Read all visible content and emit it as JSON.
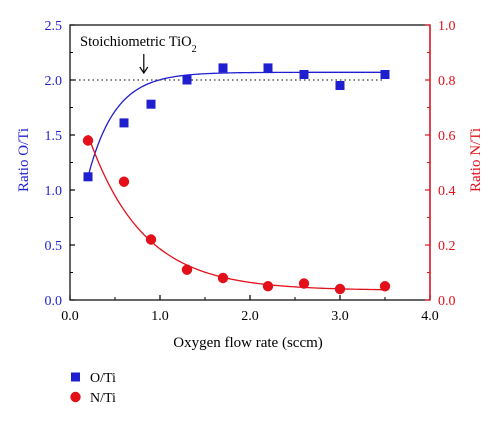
{
  "chart_data": {
    "type": "scatter",
    "xlabel": "Oxygen flow rate (sccm)",
    "ylabel_left": "Ratio O/Ti",
    "ylabel_right": "Ratio N/Ti",
    "xlim": [
      0.0,
      4.0
    ],
    "ylim_left": [
      0.0,
      2.5
    ],
    "ylim_right": [
      0.0,
      1.0
    ],
    "x_ticks": [
      "0.0",
      "1.0",
      "2.0",
      "3.0",
      "4.0"
    ],
    "y_left_ticks": [
      "0.0",
      "0.5",
      "1.0",
      "1.5",
      "2.0",
      "2.5"
    ],
    "y_right_ticks": [
      "0.0",
      "0.2",
      "0.4",
      "0.6",
      "0.8",
      "1.0"
    ],
    "annotation": {
      "text_main": "Stoichiometric TiO",
      "text_sub": "2",
      "reference_y": 2.0,
      "arrow_x": 0.82
    },
    "legend_position": "bottom-left",
    "series": [
      {
        "name": "O/Ti",
        "axis": "left",
        "marker": "square",
        "color": "#1f1fd0",
        "x": [
          0.2,
          0.6,
          0.9,
          1.3,
          1.7,
          2.2,
          2.6,
          3.0,
          3.5
        ],
        "y": [
          1.12,
          1.61,
          1.78,
          2.0,
          2.11,
          2.11,
          2.05,
          1.95,
          2.05
        ],
        "fit": {
          "model": "exp-saturation",
          "y0": 1.12,
          "yinf": 2.07,
          "k": 3.3,
          "x0": 0.2
        }
      },
      {
        "name": "N/Ti",
        "axis": "right",
        "marker": "circle",
        "color": "#e3101a",
        "x": [
          0.2,
          0.6,
          0.9,
          1.3,
          1.7,
          2.2,
          2.6,
          3.0,
          3.5
        ],
        "y": [
          0.58,
          0.43,
          0.22,
          0.11,
          0.08,
          0.05,
          0.06,
          0.04,
          0.05
        ],
        "fit": {
          "model": "exp-decay",
          "y0": 0.6,
          "yinf": 0.035,
          "k": 1.65,
          "x0": 0.2
        }
      }
    ]
  },
  "colors": {
    "left_axis": "#1f1fd0",
    "right_axis": "#e3101a",
    "axis_black": "#000000"
  }
}
